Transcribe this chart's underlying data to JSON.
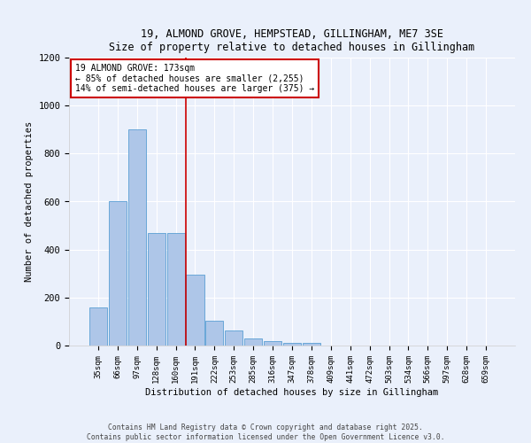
{
  "title_line1": "19, ALMOND GROVE, HEMPSTEAD, GILLINGHAM, ME7 3SE",
  "title_line2": "Size of property relative to detached houses in Gillingham",
  "xlabel": "Distribution of detached houses by size in Gillingham",
  "ylabel": "Number of detached properties",
  "bar_color": "#aec6e8",
  "bar_edge_color": "#5a9fd4",
  "categories": [
    "35sqm",
    "66sqm",
    "97sqm",
    "128sqm",
    "160sqm",
    "191sqm",
    "222sqm",
    "253sqm",
    "285sqm",
    "316sqm",
    "347sqm",
    "378sqm",
    "409sqm",
    "441sqm",
    "472sqm",
    "503sqm",
    "534sqm",
    "566sqm",
    "597sqm",
    "628sqm",
    "659sqm"
  ],
  "values": [
    160,
    600,
    900,
    470,
    470,
    295,
    105,
    63,
    28,
    20,
    12,
    10,
    0,
    0,
    0,
    0,
    0,
    0,
    0,
    0,
    0
  ],
  "ylim": [
    0,
    1200
  ],
  "yticks": [
    0,
    200,
    400,
    600,
    800,
    1000,
    1200
  ],
  "annotation_title": "19 ALMOND GROVE: 173sqm",
  "annotation_line2": "← 85% of detached houses are smaller (2,255)",
  "annotation_line3": "14% of semi-detached houses are larger (375) →",
  "vline_x": 4.52,
  "background_color": "#eaf0fb",
  "fig_background_color": "#eaf0fb",
  "grid_color": "#ffffff",
  "vline_color": "#cc0000",
  "annotation_box_color": "#ffffff",
  "annotation_box_edge": "#cc0000",
  "footer_line1": "Contains HM Land Registry data © Crown copyright and database right 2025.",
  "footer_line2": "Contains public sector information licensed under the Open Government Licence v3.0."
}
